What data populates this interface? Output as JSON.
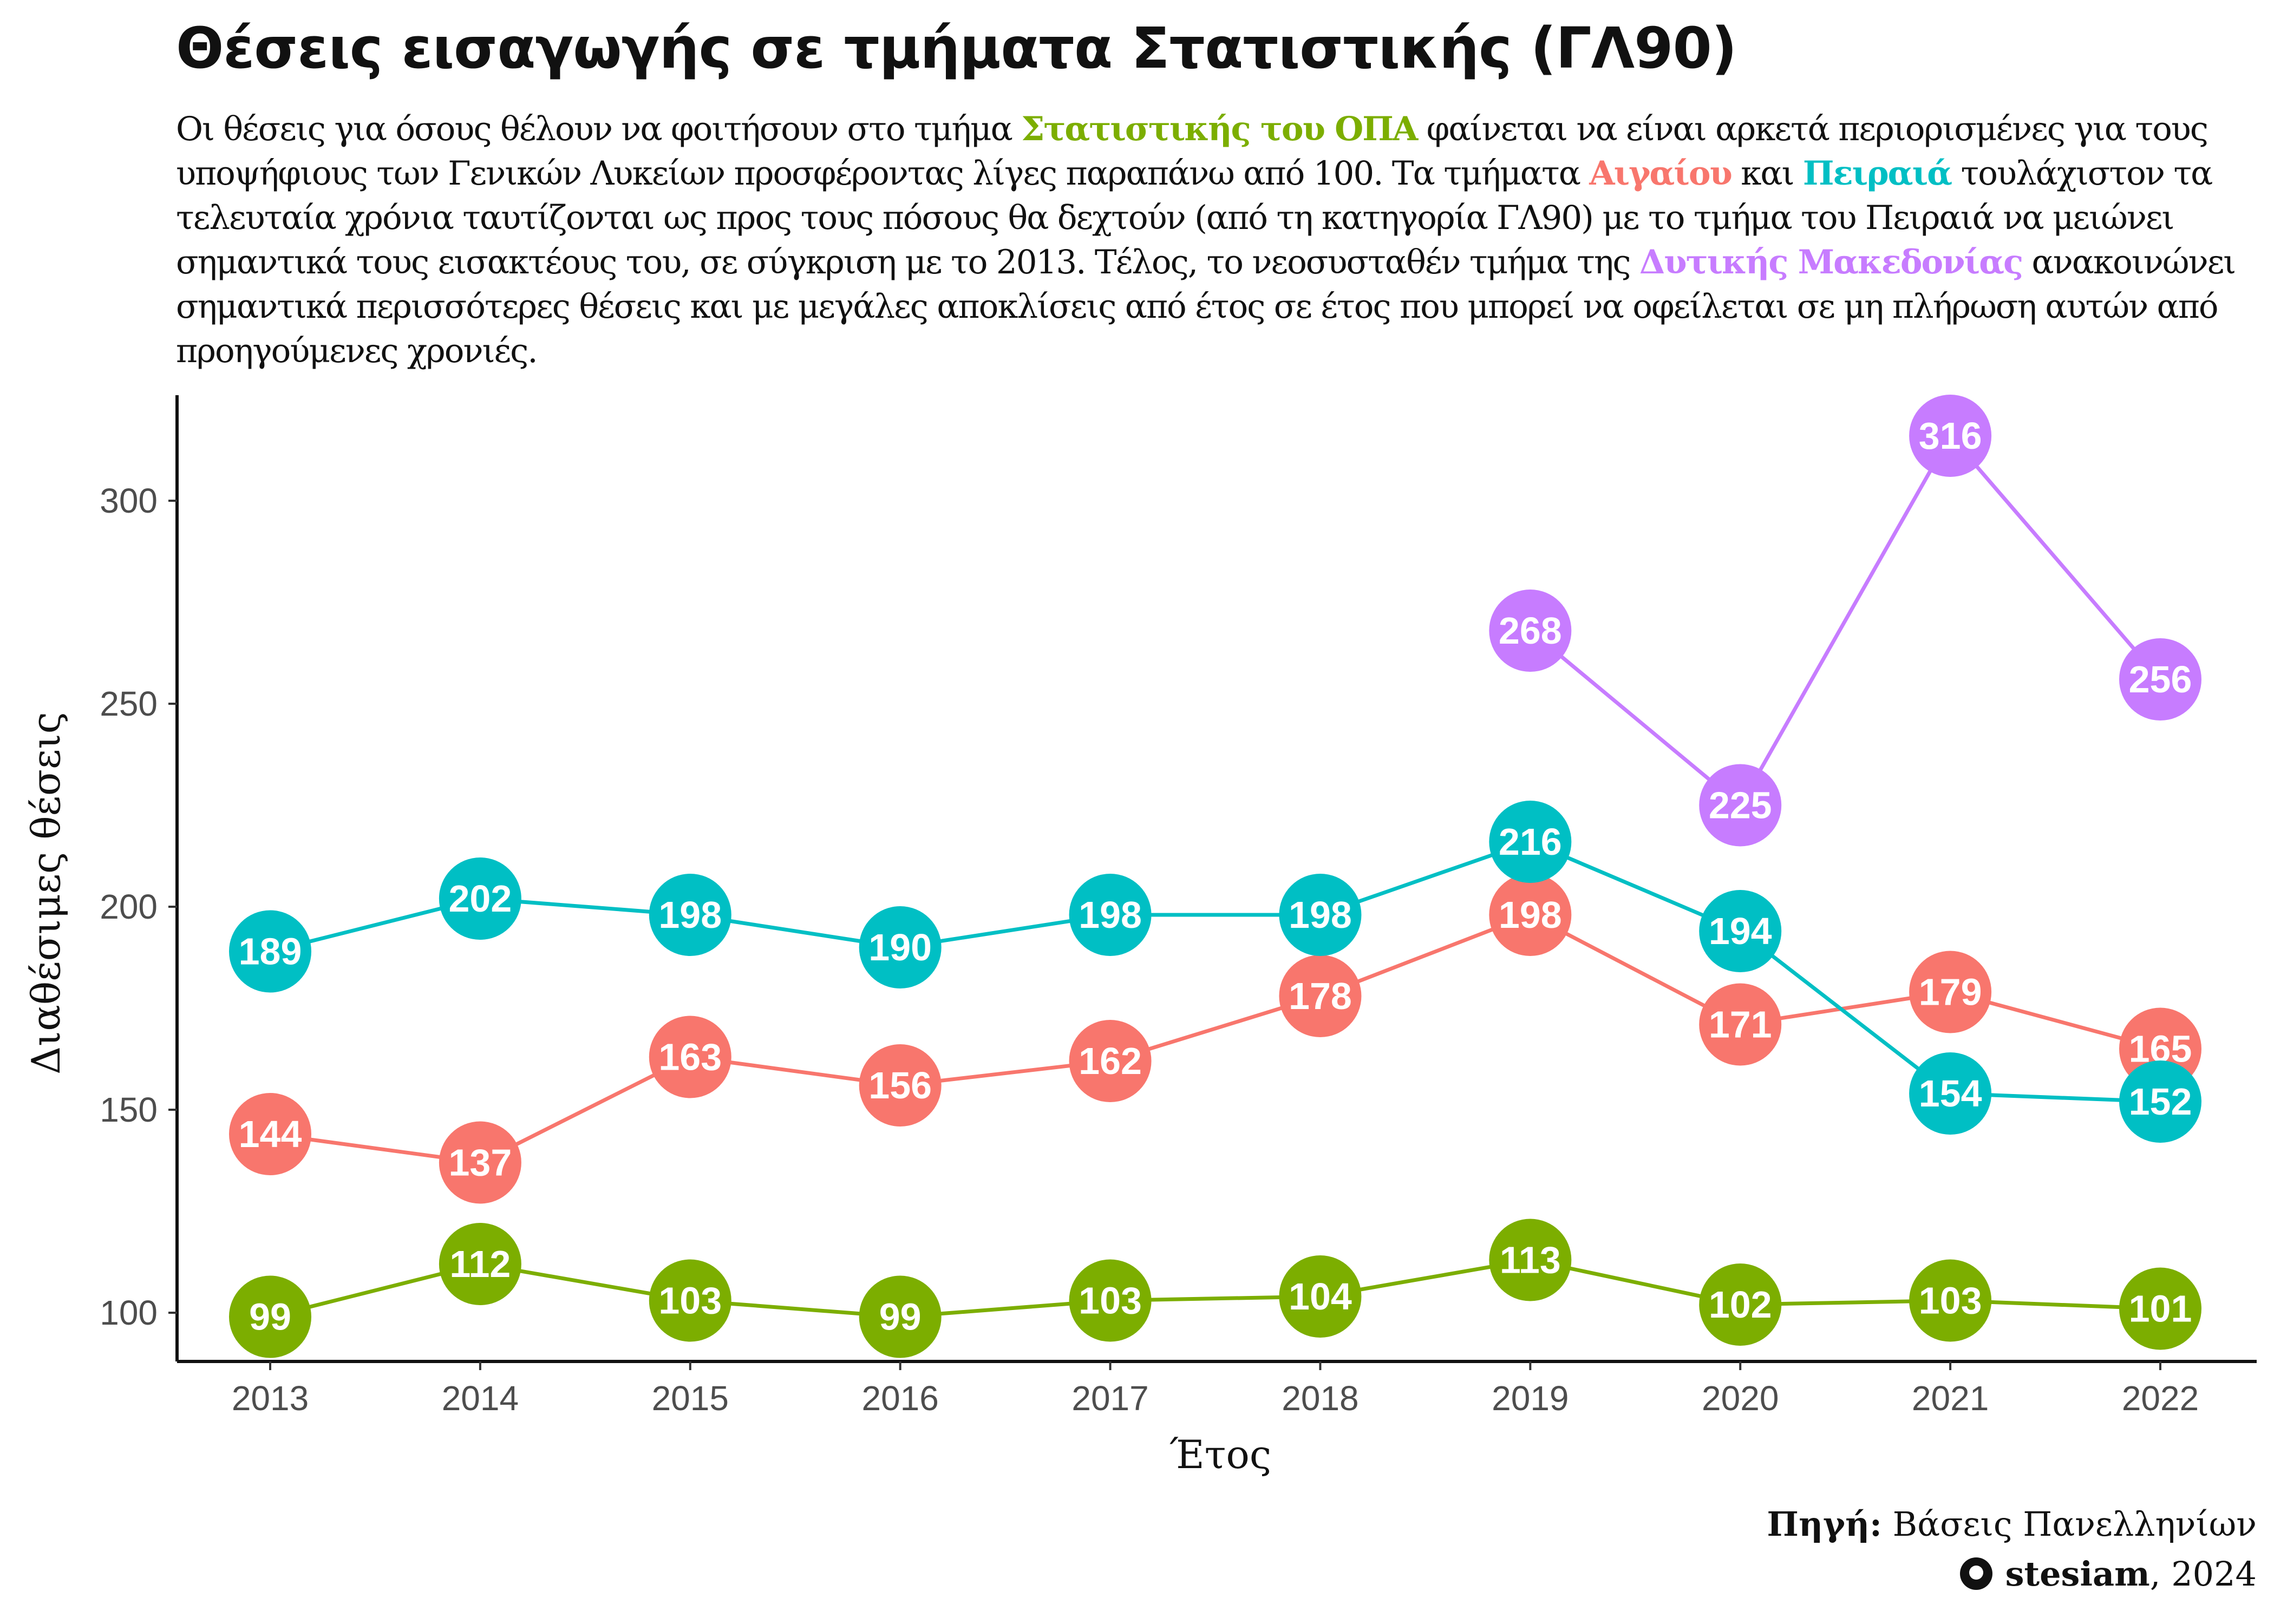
{
  "title": "Θέσεις εισαγωγής σε τμήματα Στατιστικής (ΓΛ90)",
  "subtitle": {
    "p1": "Οι θέσεις για όσους θέλουν να φοιτήσουν στο τμήμα ",
    "opa": "Στατιστικής του ΟΠΑ",
    "p2": " φαίνεται να είναι αρκετά περιορισμένες για τους υποψήφιους των Γενικών Λυκείων προσφέροντας λίγες παραπάνω από 100. Τα τμήματα ",
    "aigaiou": "Αιγαίου",
    "p3": " και ",
    "peiraia": "Πειραιά",
    "p4": " τουλάχιστον τα τελευταία χρόνια ταυτίζονται ως προς τους πόσους θα δεχτούν (από τη κατηγορία ΓΛ90) με το τμήμα του Πειραιά να μειώνει σημαντικά τους εισακτέους του, σε σύγκριση με το 2013. Τέλος, το νεοσυσταθέν τμήμα της ",
    "dmak": "Δυτικής Μακεδονίας",
    "p5": " ανακοινώνει σημαντικά περισσότερες θέσεις και με μεγάλες αποκλίσεις από έτος σε έτος που μπορεί να οφείλεται σε μη πλήρωση αυτών από προηγούμενες χρονιές."
  },
  "caption": {
    "source_label": "Πηγή:",
    "source": "Βάσεις Πανελληνίων",
    "author_icon": "github-icon",
    "author": "stesiam",
    "year": ", 2024"
  },
  "colors": {
    "opa": "#7cae00",
    "aigaiou": "#f8766d",
    "peiraia": "#00bfc4",
    "dmak": "#c77cff"
  },
  "chart_data": {
    "type": "line",
    "xlabel": "Έτος",
    "ylabel": "Διαθέσιμες θέσεις",
    "x": [
      2013,
      2014,
      2015,
      2016,
      2017,
      2018,
      2019,
      2020,
      2021,
      2022
    ],
    "yticks": [
      100,
      150,
      200,
      250,
      300
    ],
    "ylim": [
      88,
      325
    ],
    "grid": false,
    "legend": "none",
    "series": [
      {
        "color": "#f8766d",
        "values": [
          144,
          137,
          163,
          156,
          162,
          178,
          198,
          171,
          179,
          165
        ]
      },
      {
        "color": "#00bfc4",
        "values": [
          189,
          202,
          198,
          190,
          198,
          198,
          216,
          194,
          154,
          152
        ]
      },
      {
        "color": "#7cae00",
        "values": [
          99,
          112,
          103,
          99,
          103,
          104,
          113,
          102,
          103,
          101
        ]
      },
      {
        "color": "#c77cff",
        "values": [
          null,
          null,
          null,
          null,
          null,
          null,
          268,
          225,
          316,
          256
        ]
      }
    ]
  }
}
